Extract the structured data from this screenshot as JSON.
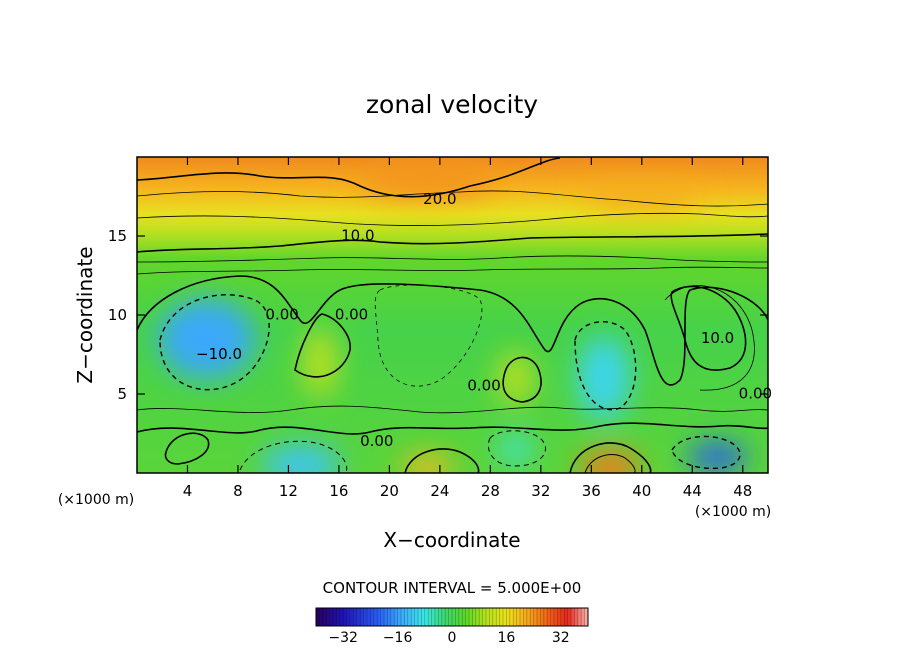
{
  "chart_data": {
    "type": "heatmap",
    "title": "zonal velocity",
    "xlabel": "X−coordinate",
    "ylabel": "Z−coordinate",
    "x_unit_left": "(×1000 m)",
    "x_unit_right": "(×1000 m)",
    "xlim": [
      0,
      50
    ],
    "ylim": [
      0,
      20
    ],
    "x_ticks": [
      4,
      8,
      12,
      16,
      20,
      24,
      28,
      32,
      36,
      40,
      44,
      48
    ],
    "y_ticks": [
      5,
      10,
      15
    ],
    "contour_interval_label": "CONTOUR INTERVAL = 5.000E+00",
    "contour_labels": [
      {
        "text": "20.0",
        "x": 24,
        "y": 17.3
      },
      {
        "text": "10.0",
        "x": 17.5,
        "y": 15.0
      },
      {
        "text": "0.00",
        "x": 11.5,
        "y": 10.0
      },
      {
        "text": "0.00",
        "x": 17.0,
        "y": 10.0
      },
      {
        "text": "−10.0",
        "x": 6.5,
        "y": 7.5
      },
      {
        "text": "0.00",
        "x": 27.5,
        "y": 5.5
      },
      {
        "text": "0.00",
        "x": 19.0,
        "y": 2.0
      },
      {
        "text": "10.0",
        "x": 46.0,
        "y": 8.5
      },
      {
        "text": "0.00",
        "x": 49.0,
        "y": 5.0
      }
    ],
    "features": [
      {
        "name": "jet-top",
        "x": 23,
        "y": 18.5,
        "value": 24
      },
      {
        "name": "jet-top-right",
        "x": 40,
        "y": 17.5,
        "value": 22
      },
      {
        "name": "neg-left",
        "x": 5.5,
        "y": 8.5,
        "value": -15
      },
      {
        "name": "neg-center",
        "x": 37,
        "y": 6,
        "value": -10
      },
      {
        "name": "neg-bottom-1",
        "x": 13,
        "y": 0.5,
        "value": -12
      },
      {
        "name": "neg-bottom-2",
        "x": 46,
        "y": 1,
        "value": -22
      },
      {
        "name": "neg-bottom-3",
        "x": 30,
        "y": 1.5,
        "value": -8
      },
      {
        "name": "pos-center",
        "x": 30,
        "y": 6,
        "value": 12
      },
      {
        "name": "pos-bottom-1",
        "x": 23,
        "y": 0.3,
        "value": 20
      },
      {
        "name": "pos-bottom-2",
        "x": 37.5,
        "y": 0.3,
        "value": 26
      },
      {
        "name": "pos-left",
        "x": 14.5,
        "y": 7,
        "value": 12
      }
    ],
    "colorbar": {
      "range": [
        -40,
        40
      ],
      "ticks": [
        -32,
        -16,
        0,
        16,
        32
      ],
      "tick_labels": [
        "−32",
        "−16",
        "0",
        "16",
        "32"
      ]
    }
  }
}
